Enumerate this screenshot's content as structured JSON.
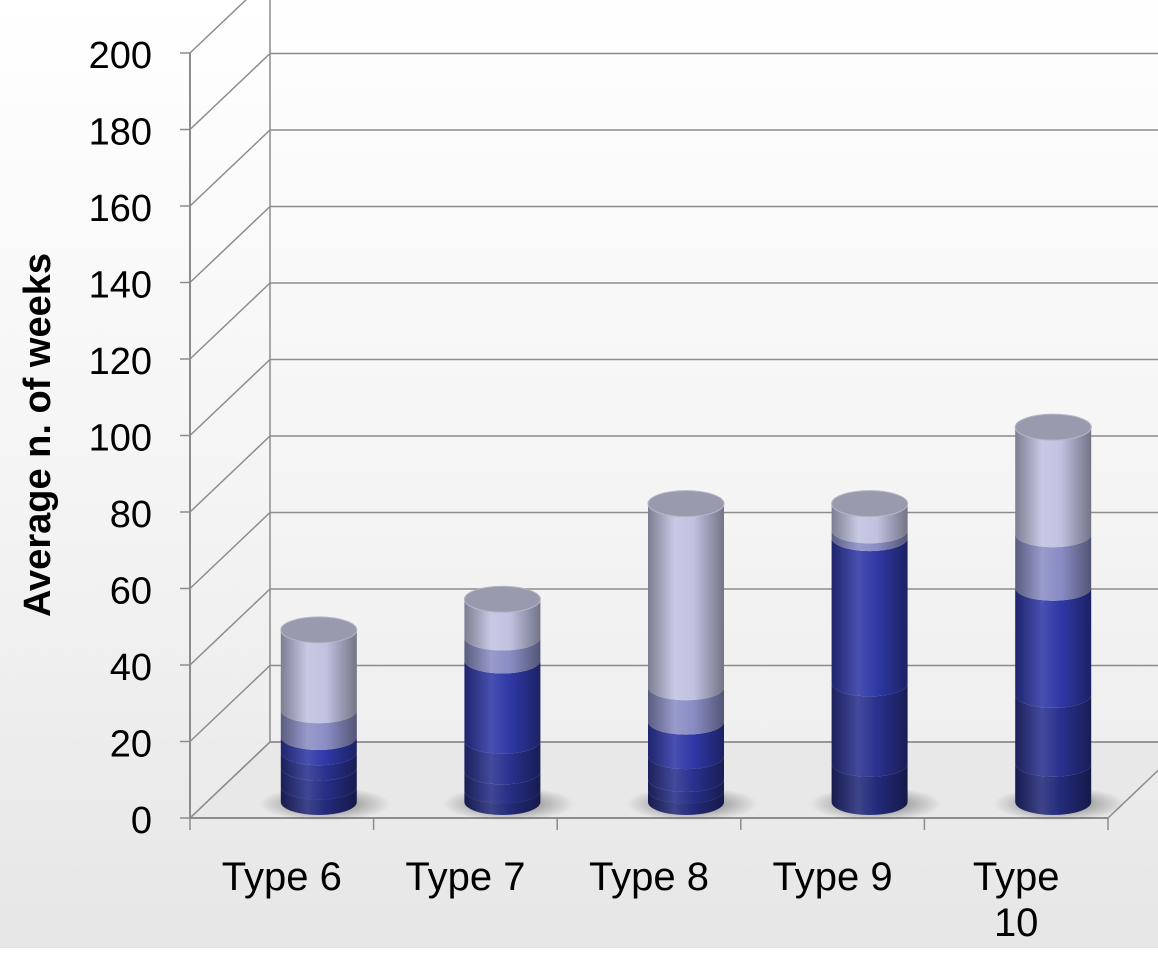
{
  "chart_data": {
    "type": "bar",
    "subtype": "3d-stacked-cylinder",
    "title": "",
    "xlabel": "",
    "ylabel": "Average n. of weeks",
    "ylim": [
      0,
      200
    ],
    "yticks": [
      0,
      20,
      40,
      60,
      80,
      100,
      120,
      140,
      160,
      180,
      200
    ],
    "grid": true,
    "categories": [
      "Type 6",
      "Type 7",
      "Type 8",
      "Type 9",
      "Type 10"
    ],
    "series": [
      {
        "values": [
          4,
          3,
          3,
          10,
          10
        ],
        "color": "#232a7a"
      },
      {
        "values": [
          5,
          5,
          3,
          0,
          0
        ],
        "color": "#262e86"
      },
      {
        "values": [
          4,
          8,
          6,
          21,
          18
        ],
        "color": "#29318e"
      },
      {
        "values": [
          4,
          21,
          9,
          38,
          28
        ],
        "color": "#2f38a6"
      },
      {
        "values": [
          7,
          6,
          9,
          2,
          14
        ],
        "color": "#8a8dc4"
      },
      {
        "values": [
          21,
          10,
          48,
          7,
          28
        ],
        "color": "#c0c2e0"
      }
    ]
  }
}
